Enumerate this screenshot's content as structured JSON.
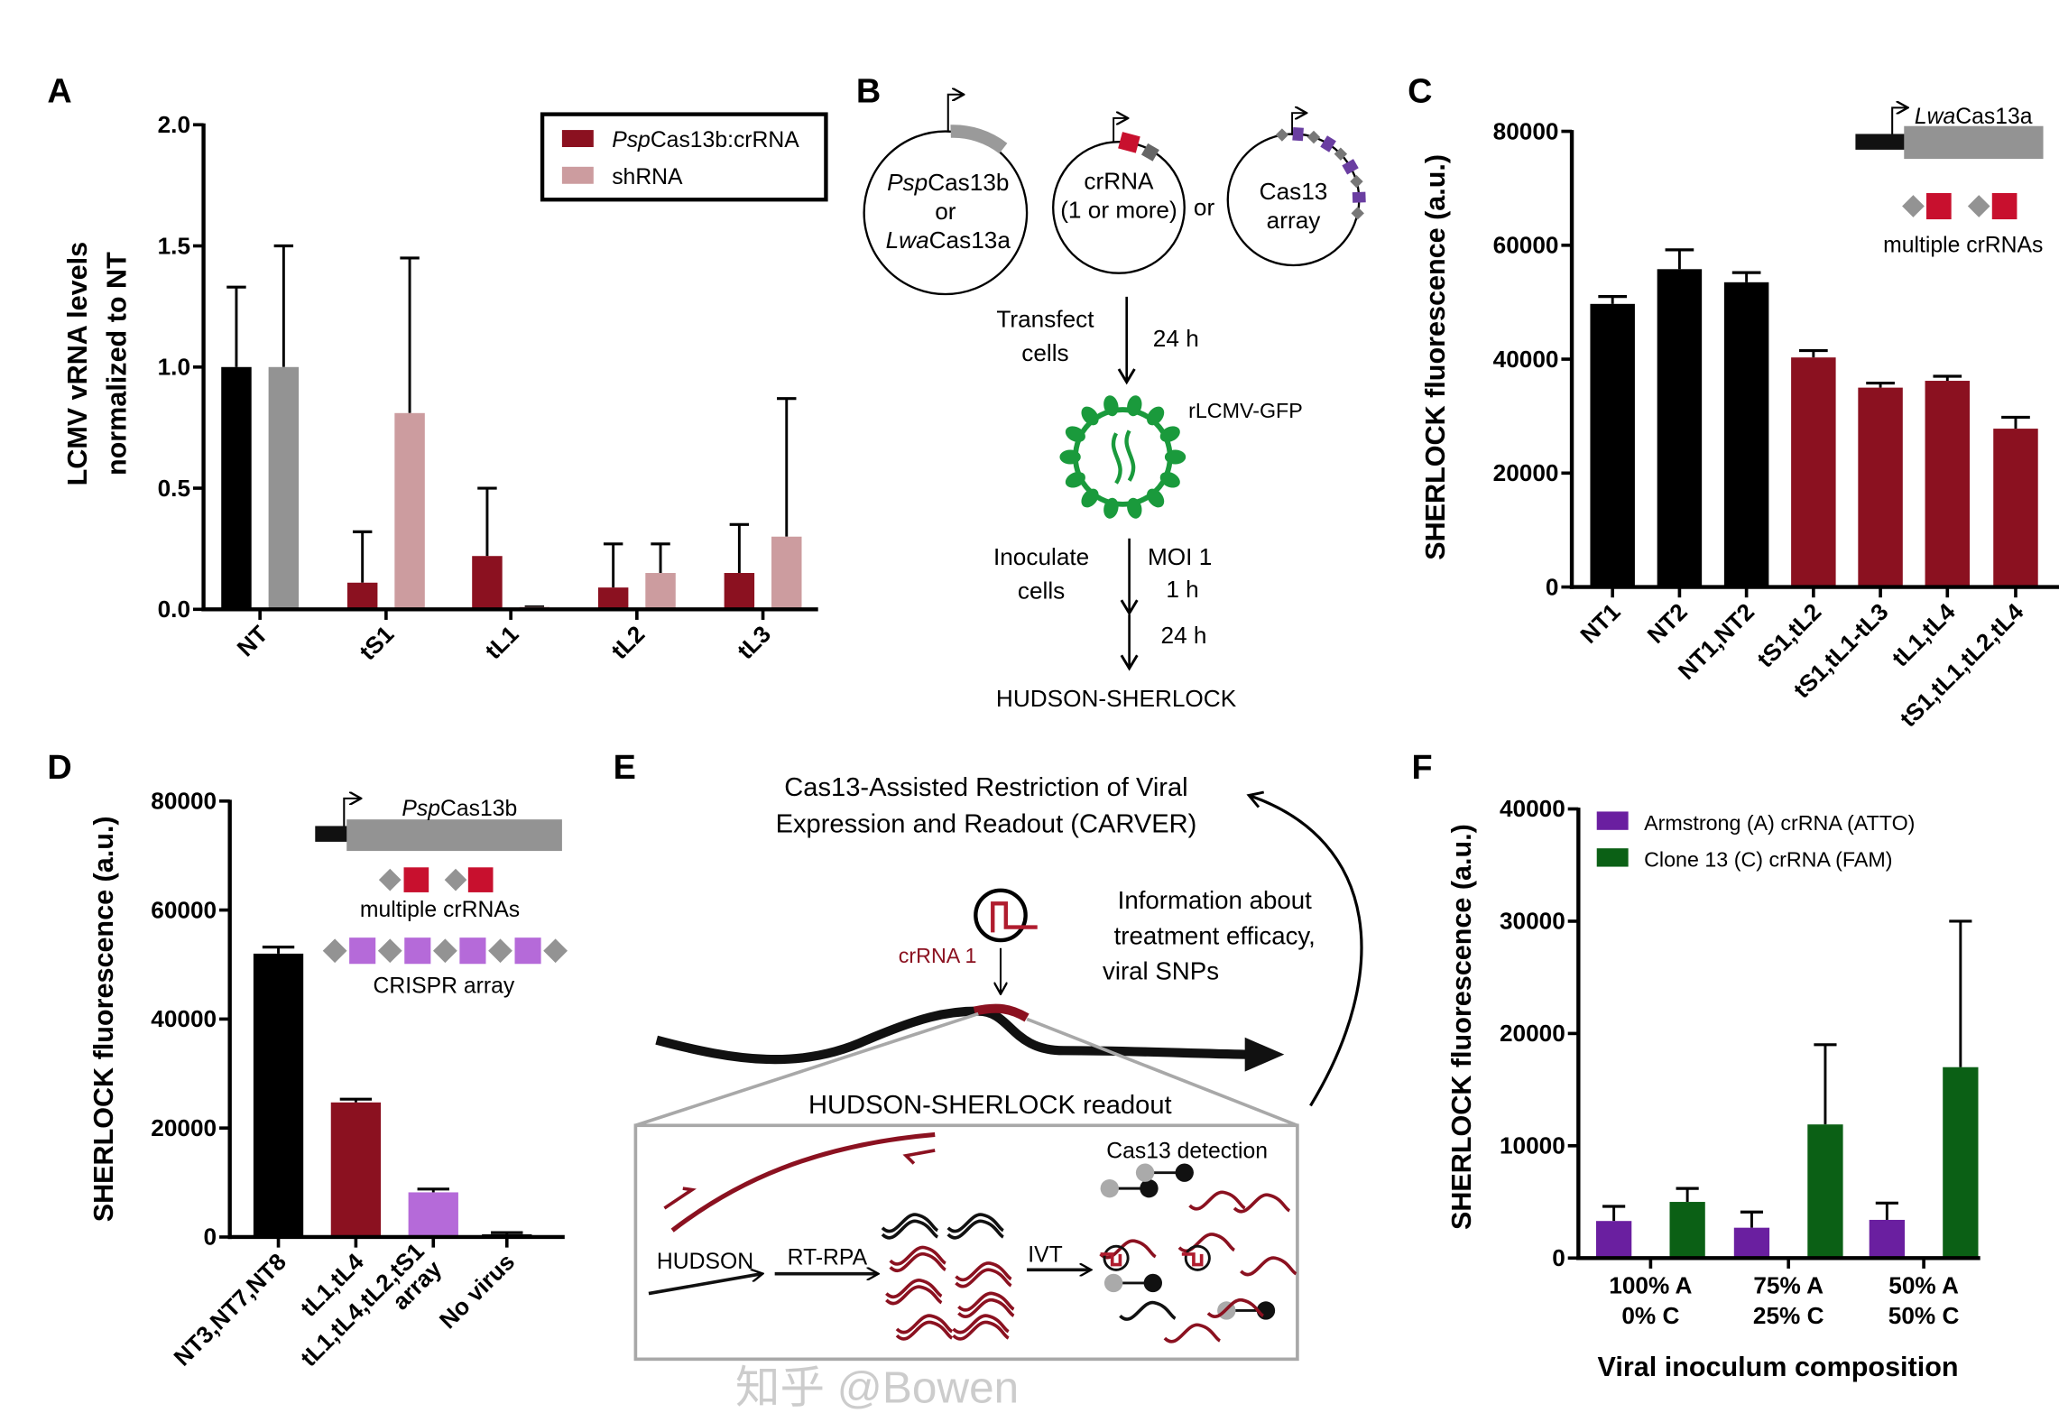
{
  "panels": {
    "A": {
      "label": "A"
    },
    "B": {
      "label": "B",
      "plasmid1": {
        "line1_italic": "Psp",
        "line1_rest": "Cas13b",
        "line2": "or",
        "line3_italic": "Lwa",
        "line3_rest": "Cas13a"
      },
      "plasmid2": {
        "line1": "crRNA",
        "line2": "(1 or more)"
      },
      "or": "or",
      "plasmid3": {
        "line1": "Cas13",
        "line2": "array"
      },
      "step1": {
        "line1": "Transfect",
        "line2": "cells",
        "time": "24 h"
      },
      "virus_label": "rLCMV-GFP",
      "step2": {
        "line1": "Inoculate",
        "line2": "cells",
        "moi": "MOI 1",
        "time1": "1 h",
        "time2": "24 h"
      },
      "readout": "HUDSON-SHERLOCK"
    },
    "C": {
      "label": "C",
      "inset": {
        "gene_italic": "Lwa",
        "gene_rest": "Cas13a",
        "crrna_text": "multiple crRNAs"
      }
    },
    "D": {
      "label": "D",
      "inset": {
        "gene_italic": "Psp",
        "gene_rest": "Cas13b",
        "crrna_text": "multiple crRNAs",
        "array_text": "CRISPR array"
      }
    },
    "E": {
      "label": "E",
      "title_line1": "Cas13-Assisted Restriction of Viral",
      "title_line2": "Expression and Readout (CARVER)",
      "crrna_label": "crRNA 1",
      "info_line1": "Information about",
      "info_line2": "treatment efficacy,",
      "info_line3": "viral SNPs",
      "readout_title": "HUDSON-SHERLOCK readout",
      "hudson": "HUDSON",
      "rtrpa": "RT-RPA",
      "ivt": "IVT",
      "detection": "Cas13 detection"
    },
    "F": {
      "label": "F"
    }
  },
  "watermark": "知乎 @Bowen",
  "colors": {
    "dark_red": "#8b1120",
    "pink": "#cc9c9f",
    "gray": "#939393",
    "black": "#000000",
    "purple_light": "#b56ad9",
    "purple": "#6a1fa0",
    "green": "#0b6015",
    "virus_green": "#1a9a3c",
    "crrna_red": "#c8102e"
  },
  "chart_data": [
    {
      "panel": "A",
      "type": "bar",
      "ylabel_line1": "LCMV vRNA levels",
      "ylabel_line2": "normalized to NT",
      "categories": [
        "NT",
        "tS1",
        "tL1",
        "tL2",
        "tL3"
      ],
      "ylim": [
        0,
        2.0
      ],
      "yticks": [
        "0.0",
        "0.5",
        "1.0",
        "1.5",
        "2.0"
      ],
      "legend_position": "top-right",
      "legend": [
        {
          "name": "PspCas13b:crRNA",
          "italic_prefix": "Psp",
          "rest": "Cas13b:crRNA",
          "color": "#8b1120"
        },
        {
          "name": "shRNA",
          "color": "#cc9c9f"
        }
      ],
      "series": [
        {
          "values": [
            1.0,
            0.11,
            0.22,
            0.09,
            0.15
          ],
          "error": [
            0.33,
            0.21,
            0.28,
            0.18,
            0.2
          ],
          "colors": [
            "#000000",
            "#8b1120",
            "#8b1120",
            "#8b1120",
            "#8b1120"
          ]
        },
        {
          "values": [
            1.0,
            0.81,
            0.01,
            0.15,
            0.3
          ],
          "error": [
            0.5,
            0.64,
            0.0,
            0.12,
            0.57
          ],
          "colors": [
            "#939393",
            "#cc9c9f",
            "#cc9c9f",
            "#cc9c9f",
            "#cc9c9f"
          ]
        }
      ]
    },
    {
      "panel": "C",
      "type": "bar",
      "ylabel": "SHERLOCK fluorescence (a.u.)",
      "categories": [
        "NT1",
        "NT2",
        "NT1,NT2",
        "tS1,tL2",
        "tS1,tL1-tL3",
        "tL1,tL4",
        "tS1,tL1,tL2,tL4"
      ],
      "ylim": [
        0,
        80000
      ],
      "yticks": [
        "0",
        "20000",
        "40000",
        "60000",
        "80000"
      ],
      "series": [
        {
          "values": [
            49700,
            55800,
            53500,
            40300,
            35000,
            36200,
            27800
          ],
          "error": [
            1300,
            3400,
            1700,
            1200,
            800,
            800,
            2000
          ],
          "colors": [
            "#000000",
            "#000000",
            "#000000",
            "#8b1120",
            "#8b1120",
            "#8b1120",
            "#8b1120"
          ]
        }
      ]
    },
    {
      "panel": "D",
      "type": "bar",
      "ylabel": "SHERLOCK fluorescence (a.u.)",
      "categories": [
        "NT3,NT7,NT8",
        "tL1,tL4",
        "tL1,tL4,tL2,tS1\narray",
        "No virus"
      ],
      "ylim": [
        0,
        80000
      ],
      "yticks": [
        "0",
        "20000",
        "40000",
        "60000",
        "80000"
      ],
      "series": [
        {
          "values": [
            52000,
            24700,
            8200,
            500
          ],
          "error": [
            1200,
            600,
            600,
            300
          ],
          "colors": [
            "#000000",
            "#8b1120",
            "#b56ad9",
            "#000000"
          ]
        }
      ]
    },
    {
      "panel": "F",
      "type": "bar",
      "ylabel": "SHERLOCK fluorescence (a.u.)",
      "xlabel": "Viral inoculum composition",
      "categories": [
        "100% A\n0% C",
        "75% A\n25% C",
        "50% A\n50% C"
      ],
      "ylim": [
        0,
        40000
      ],
      "yticks": [
        "0",
        "10000",
        "20000",
        "30000",
        "40000"
      ],
      "legend_position": "top-left",
      "legend": [
        {
          "name": "Armstrong (A) crRNA (ATTO)",
          "color": "#6a1fa0"
        },
        {
          "name": "Clone 13 (C) crRNA (FAM)",
          "color": "#0b6015"
        }
      ],
      "series": [
        {
          "name": "Armstrong (A) crRNA (ATTO)",
          "values": [
            3300,
            2700,
            3400
          ],
          "error": [
            1300,
            1400,
            1500
          ],
          "colors": [
            "#6a1fa0",
            "#6a1fa0",
            "#6a1fa0"
          ]
        },
        {
          "name": "Clone 13 (C) crRNA (FAM)",
          "values": [
            5000,
            11900,
            17000
          ],
          "error": [
            1200,
            7100,
            13000
          ],
          "colors": [
            "#0b6015",
            "#0b6015",
            "#0b6015"
          ]
        }
      ]
    }
  ]
}
